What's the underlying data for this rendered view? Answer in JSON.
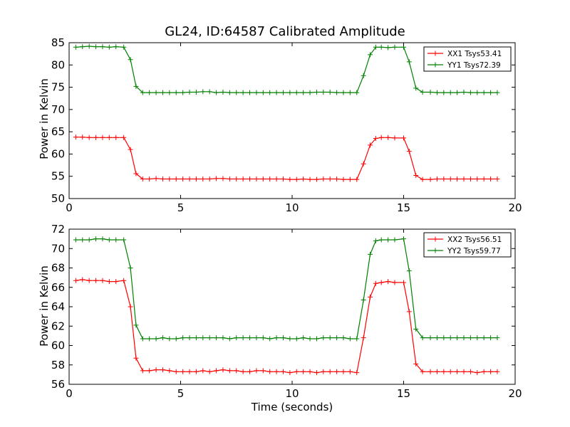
{
  "figure_title": "GL24, ID:64587 Calibrated Amplitude",
  "x_axis_label": "Time (seconds)",
  "chart_data": [
    {
      "type": "line",
      "ylabel": "Power in Kelvin",
      "xlim": [
        0,
        20
      ],
      "ylim": [
        50,
        85
      ],
      "xticks": [
        0,
        5,
        10,
        15,
        20
      ],
      "yticks": [
        50,
        55,
        60,
        65,
        70,
        75,
        80,
        85
      ],
      "grid": false,
      "legend": "top-right",
      "x": [
        0.3,
        0.6,
        0.9,
        1.2,
        1.5,
        1.8,
        2.1,
        2.45,
        2.75,
        3.0,
        3.3,
        3.6,
        3.9,
        4.2,
        4.5,
        4.8,
        5.1,
        5.4,
        5.7,
        6.0,
        6.3,
        6.6,
        6.9,
        7.2,
        7.5,
        7.8,
        8.1,
        8.4,
        8.7,
        9.0,
        9.3,
        9.6,
        9.9,
        10.2,
        10.5,
        10.8,
        11.1,
        11.4,
        11.7,
        12.0,
        12.3,
        12.6,
        12.9,
        13.2,
        13.5,
        13.75,
        14.0,
        14.3,
        14.6,
        15.0,
        15.25,
        15.55,
        15.85,
        16.2,
        16.5,
        16.8,
        17.1,
        17.4,
        17.7,
        18.0,
        18.3,
        18.6,
        18.9,
        19.2
      ],
      "series": [
        {
          "name": "XX1 Tsys53.41",
          "color": "#ff0000",
          "values": [
            63.8,
            63.8,
            63.7,
            63.7,
            63.7,
            63.7,
            63.7,
            63.7,
            61.0,
            55.6,
            54.4,
            54.4,
            54.5,
            54.4,
            54.4,
            54.4,
            54.4,
            54.4,
            54.4,
            54.4,
            54.4,
            54.5,
            54.5,
            54.4,
            54.4,
            54.4,
            54.4,
            54.4,
            54.4,
            54.4,
            54.4,
            54.4,
            54.3,
            54.3,
            54.4,
            54.3,
            54.3,
            54.4,
            54.4,
            54.4,
            54.3,
            54.3,
            54.3,
            57.8,
            62.0,
            63.5,
            63.7,
            63.7,
            63.6,
            63.6,
            60.6,
            55.2,
            54.3,
            54.3,
            54.4,
            54.4,
            54.4,
            54.4,
            54.4,
            54.4,
            54.4,
            54.4,
            54.4,
            54.4
          ]
        },
        {
          "name": "YY1 Tsys72.39",
          "color": "#008000",
          "values": [
            84.0,
            84.1,
            84.2,
            84.1,
            84.1,
            84.0,
            84.1,
            84.0,
            81.2,
            75.2,
            73.8,
            73.8,
            73.8,
            73.8,
            73.8,
            73.8,
            73.8,
            73.9,
            73.9,
            74.0,
            74.0,
            73.8,
            73.9,
            73.8,
            73.8,
            73.8,
            73.8,
            73.8,
            73.8,
            73.8,
            73.8,
            73.8,
            73.8,
            73.8,
            73.8,
            73.8,
            73.9,
            73.9,
            73.9,
            73.8,
            73.8,
            73.8,
            73.8,
            77.6,
            82.3,
            84.0,
            84.0,
            83.9,
            84.0,
            84.0,
            80.7,
            74.8,
            73.9,
            73.9,
            73.8,
            73.8,
            73.8,
            73.8,
            73.9,
            73.8,
            73.8,
            73.8,
            73.8,
            73.8
          ]
        }
      ]
    },
    {
      "type": "line",
      "ylabel": "Power in Kelvin",
      "xlim": [
        0,
        20
      ],
      "ylim": [
        56,
        72
      ],
      "xticks": [
        0,
        5,
        10,
        15,
        20
      ],
      "yticks": [
        56,
        58,
        60,
        62,
        64,
        66,
        68,
        70,
        72
      ],
      "grid": false,
      "legend": "top-right",
      "x": [
        0.3,
        0.6,
        0.9,
        1.2,
        1.5,
        1.8,
        2.1,
        2.45,
        2.75,
        3.0,
        3.3,
        3.6,
        3.9,
        4.2,
        4.5,
        4.8,
        5.1,
        5.4,
        5.7,
        6.0,
        6.3,
        6.6,
        6.9,
        7.2,
        7.5,
        7.8,
        8.1,
        8.4,
        8.7,
        9.0,
        9.3,
        9.6,
        9.9,
        10.2,
        10.5,
        10.8,
        11.1,
        11.4,
        11.7,
        12.0,
        12.3,
        12.6,
        12.9,
        13.2,
        13.5,
        13.75,
        14.0,
        14.3,
        14.6,
        15.0,
        15.25,
        15.55,
        15.85,
        16.2,
        16.5,
        16.8,
        17.1,
        17.4,
        17.7,
        18.0,
        18.3,
        18.6,
        18.9,
        19.2
      ],
      "series": [
        {
          "name": "XX2 Tsys56.51",
          "color": "#ff0000",
          "values": [
            66.7,
            66.8,
            66.7,
            66.7,
            66.7,
            66.6,
            66.6,
            66.7,
            64.0,
            58.7,
            57.4,
            57.4,
            57.5,
            57.5,
            57.4,
            57.3,
            57.3,
            57.3,
            57.3,
            57.4,
            57.3,
            57.4,
            57.5,
            57.4,
            57.4,
            57.3,
            57.3,
            57.4,
            57.4,
            57.3,
            57.3,
            57.3,
            57.2,
            57.3,
            57.3,
            57.3,
            57.2,
            57.3,
            57.3,
            57.3,
            57.3,
            57.3,
            57.2,
            60.8,
            65.0,
            66.4,
            66.5,
            66.6,
            66.5,
            66.5,
            63.5,
            58.1,
            57.3,
            57.3,
            57.3,
            57.3,
            57.3,
            57.3,
            57.3,
            57.3,
            57.2,
            57.3,
            57.3,
            57.3
          ]
        },
        {
          "name": "YY2 Tsys59.77",
          "color": "#008000",
          "values": [
            70.9,
            70.9,
            70.9,
            71.0,
            71.0,
            70.9,
            70.9,
            70.9,
            68.0,
            62.1,
            60.7,
            60.7,
            60.7,
            60.8,
            60.7,
            60.7,
            60.8,
            60.8,
            60.8,
            60.8,
            60.8,
            60.8,
            60.8,
            60.7,
            60.8,
            60.8,
            60.8,
            60.8,
            60.8,
            60.7,
            60.8,
            60.8,
            60.7,
            60.7,
            60.8,
            60.7,
            60.7,
            60.8,
            60.8,
            60.8,
            60.8,
            60.7,
            60.7,
            64.7,
            69.4,
            70.8,
            70.9,
            70.9,
            70.9,
            71.0,
            67.7,
            61.7,
            60.8,
            60.8,
            60.8,
            60.8,
            60.8,
            60.8,
            60.8,
            60.8,
            60.8,
            60.8,
            60.8,
            60.8
          ]
        }
      ]
    }
  ]
}
